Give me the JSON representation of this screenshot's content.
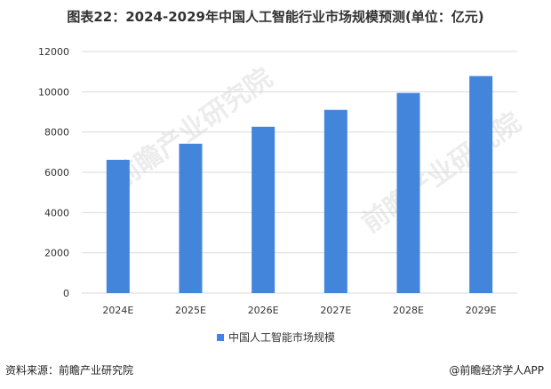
{
  "chart_data": {
    "type": "bar",
    "title": "图表22：2024-2029年中国人工智能行业市场规模预测(单位：亿元)",
    "categories": [
      "2024E",
      "2025E",
      "2026E",
      "2027E",
      "2028E",
      "2029E"
    ],
    "series": [
      {
        "name": "中国人工智能市场规模",
        "values": [
          6620,
          7420,
          8260,
          9100,
          9940,
          10780
        ],
        "color": "#4285DB"
      }
    ],
    "ylim": [
      0,
      12000
    ],
    "yticks": [
      0,
      2000,
      4000,
      6000,
      8000,
      10000,
      12000
    ],
    "grid": true,
    "legend": "bottom"
  },
  "footer": {
    "source": "资料来源：前瞻产业研究院",
    "brand": "@前瞻经济学人APP"
  },
  "watermark": "前瞻产业研究院"
}
